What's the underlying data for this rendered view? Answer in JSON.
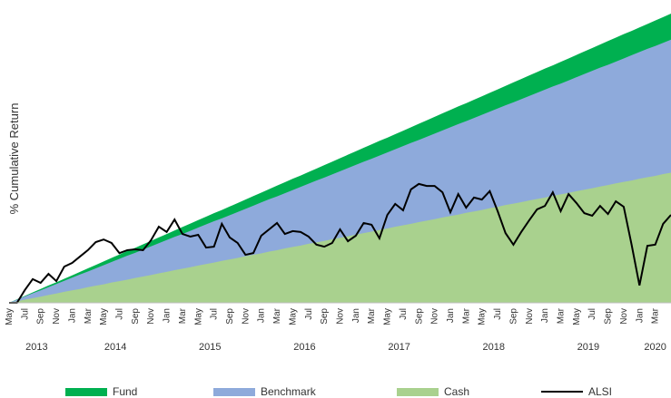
{
  "chart_data": {
    "type": "area",
    "y_label": "% Cumulative Return",
    "categories": [
      "May",
      null,
      "Jul",
      null,
      "Sep",
      null,
      "Nov",
      null,
      "Jan",
      null,
      "Mar",
      null,
      "May",
      null,
      "Jul",
      null,
      "Sep",
      null,
      "Nov",
      null,
      "Jan",
      null,
      "Mar",
      null,
      "May",
      null,
      "Jul",
      null,
      "Sep",
      null,
      "Nov",
      null,
      "Jan",
      null,
      "Mar",
      null,
      "May",
      null,
      "Jul",
      null,
      "Sep",
      null,
      "Nov",
      null,
      "Jan",
      null,
      "Mar",
      null,
      "May",
      null,
      "Jul",
      null,
      "Sep",
      null,
      "Nov",
      null,
      "Jan",
      null,
      "Mar",
      null,
      "May",
      null,
      "Jul",
      null,
      "Sep",
      null,
      "Nov",
      null,
      "Jan",
      null,
      "Mar",
      null,
      "May",
      null,
      "Jul",
      null,
      "Sep",
      null,
      "Nov",
      null,
      "Jan",
      null,
      "Mar",
      null,
      null
    ],
    "years": [
      "2013",
      "2014",
      "2015",
      "2016",
      "2017",
      "2018",
      "2019",
      "2020"
    ],
    "ylim": [
      0,
      100
    ],
    "series": [
      {
        "name": "Fund",
        "kind": "area",
        "color": "#00b050",
        "values": [
          0,
          1.2,
          2.4,
          3.6,
          4.8,
          6.0,
          7.1,
          8.3,
          9.5,
          10.7,
          11.9,
          13.1,
          14.3,
          15.5,
          16.7,
          17.9,
          19.0,
          20.2,
          21.4,
          22.6,
          23.8,
          25.0,
          26.2,
          27.4,
          28.6,
          29.8,
          31.0,
          32.1,
          33.3,
          34.5,
          35.7,
          36.9,
          38.1,
          39.3,
          40.5,
          41.7,
          42.9,
          44.0,
          45.2,
          46.4,
          47.6,
          48.8,
          50.0,
          51.2,
          52.4,
          53.6,
          54.8,
          56.0,
          57.1,
          58.3,
          59.5,
          60.7,
          61.9,
          63.1,
          64.3,
          65.5,
          66.7,
          67.9,
          69.0,
          70.2,
          71.4,
          72.6,
          73.8,
          75.0,
          76.2,
          77.4,
          78.6,
          79.8,
          81.0,
          82.1,
          83.3,
          84.5,
          85.7,
          86.9,
          88.1,
          89.3,
          90.5,
          91.7,
          92.9,
          94.0,
          95.2,
          96.4,
          97.6,
          98.8,
          100.0
        ]
      },
      {
        "name": "Benchmark",
        "kind": "area",
        "color": "#8eaadb",
        "values": [
          0,
          1.1,
          2.2,
          3.3,
          4.3,
          5.4,
          6.5,
          7.6,
          8.7,
          9.8,
          10.8,
          11.9,
          13.0,
          14.1,
          15.2,
          16.3,
          17.3,
          18.4,
          19.5,
          20.6,
          21.7,
          22.8,
          23.8,
          24.9,
          26.0,
          27.1,
          28.2,
          29.2,
          30.3,
          31.4,
          32.5,
          33.6,
          34.7,
          35.8,
          36.8,
          37.9,
          39.0,
          40.1,
          41.2,
          42.3,
          43.3,
          44.4,
          45.5,
          46.6,
          47.7,
          48.8,
          49.8,
          50.9,
          52.0,
          53.1,
          54.2,
          55.3,
          56.3,
          57.4,
          58.5,
          59.6,
          60.7,
          61.8,
          62.8,
          63.9,
          65.0,
          66.1,
          67.2,
          68.3,
          69.3,
          70.4,
          71.5,
          72.6,
          73.7,
          74.8,
          75.8,
          76.9,
          78.0,
          79.1,
          80.2,
          81.3,
          82.3,
          83.4,
          84.5,
          85.6,
          86.7,
          87.8,
          88.8,
          89.9,
          91.0
        ]
      },
      {
        "name": "Cash",
        "kind": "area",
        "color": "#a9d18e",
        "values": [
          0,
          0.5,
          1.1,
          1.6,
          2.1,
          2.7,
          3.2,
          3.8,
          4.3,
          4.8,
          5.4,
          5.9,
          6.4,
          7.0,
          7.5,
          8.0,
          8.6,
          9.1,
          9.6,
          10.2,
          10.7,
          11.3,
          11.8,
          12.3,
          12.9,
          13.4,
          13.9,
          14.5,
          15.0,
          15.5,
          16.1,
          16.6,
          17.1,
          17.7,
          18.2,
          18.8,
          19.3,
          19.8,
          20.4,
          20.9,
          21.4,
          22.0,
          22.5,
          23.0,
          23.6,
          24.1,
          24.6,
          25.2,
          25.7,
          26.3,
          26.8,
          27.3,
          27.9,
          28.4,
          28.9,
          29.5,
          30.0,
          30.5,
          31.1,
          31.6,
          32.1,
          32.7,
          33.2,
          33.8,
          34.3,
          34.8,
          35.4,
          35.9,
          36.4,
          37.0,
          37.5,
          38.0,
          38.6,
          39.1,
          39.6,
          40.2,
          40.7,
          41.3,
          41.8,
          42.3,
          42.9,
          43.4,
          43.9,
          44.5,
          45.0
        ]
      },
      {
        "name": "ALSI",
        "kind": "line",
        "color": "#000000",
        "values": [
          0,
          0,
          4.4,
          8.2,
          6.9,
          10.0,
          7.5,
          12.5,
          13.8,
          16.0,
          18.2,
          21.0,
          21.9,
          20.7,
          17.2,
          18.2,
          18.5,
          18.2,
          21.6,
          26.3,
          24.5,
          28.8,
          23.8,
          22.9,
          23.5,
          19.1,
          19.4,
          27.3,
          22.6,
          20.7,
          16.6,
          17.2,
          23.2,
          25.4,
          27.6,
          23.8,
          24.8,
          24.5,
          22.9,
          20.1,
          19.4,
          20.7,
          25.4,
          21.3,
          23.2,
          27.6,
          27.0,
          22.3,
          30.4,
          34.2,
          32.0,
          39.2,
          41.1,
          40.4,
          40.4,
          38.2,
          31.3,
          37.6,
          32.9,
          36.4,
          35.7,
          38.6,
          31.7,
          24.1,
          20.1,
          24.5,
          28.5,
          32.3,
          33.5,
          38.2,
          31.7,
          37.6,
          34.5,
          31.0,
          30.1,
          33.5,
          30.7,
          35.1,
          33.2,
          20.1,
          6.0,
          19.7,
          20.1,
          27.3,
          30.4
        ]
      }
    ]
  }
}
